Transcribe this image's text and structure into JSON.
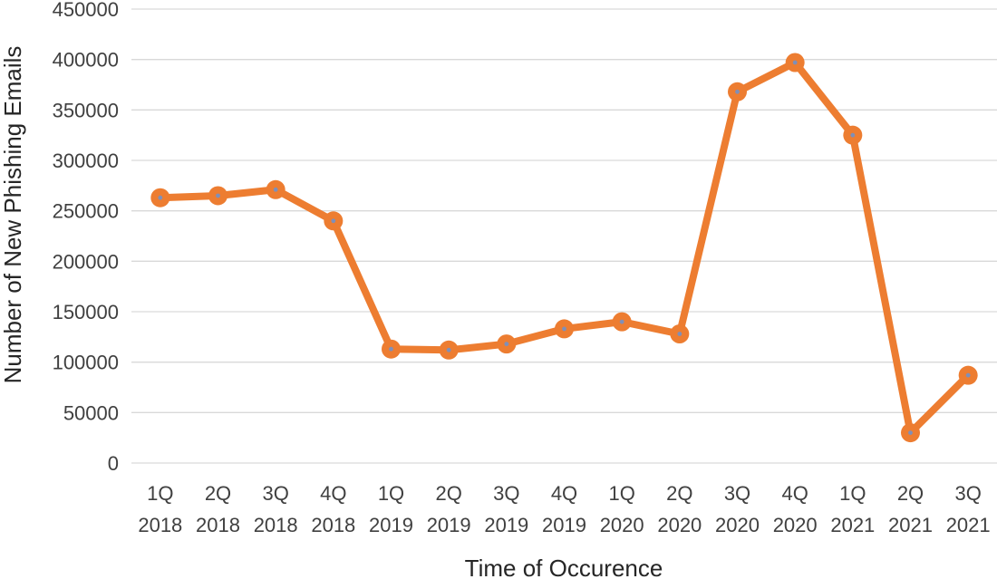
{
  "chart_data": {
    "type": "line",
    "title": "",
    "xlabel": "Time of Occurence",
    "ylabel": "Number of New Phishing Emails",
    "categories": [
      [
        "1Q",
        "2018"
      ],
      [
        "2Q",
        "2018"
      ],
      [
        "3Q",
        "2018"
      ],
      [
        "4Q",
        "2018"
      ],
      [
        "1Q",
        "2019"
      ],
      [
        "2Q",
        "2019"
      ],
      [
        "3Q",
        "2019"
      ],
      [
        "4Q",
        "2019"
      ],
      [
        "1Q",
        "2020"
      ],
      [
        "2Q",
        "2020"
      ],
      [
        "3Q",
        "2020"
      ],
      [
        "4Q",
        "2020"
      ],
      [
        "1Q",
        "2021"
      ],
      [
        "2Q",
        "2021"
      ],
      [
        "3Q",
        "2021"
      ]
    ],
    "series": [
      {
        "values": [
          263000,
          265000,
          271000,
          240000,
          113000,
          112000,
          118000,
          133000,
          140000,
          128000,
          368000,
          397000,
          325000,
          30000,
          87000
        ]
      }
    ],
    "ylim": [
      0,
      450000
    ],
    "yticks": [
      "0",
      "50000",
      "100000",
      "150000",
      "200000",
      "250000",
      "300000",
      "350000",
      "400000",
      "450000"
    ],
    "grid": true,
    "legend": "none",
    "colors": {
      "line": "#ed7d31",
      "marker_center": "#7f8fb8",
      "grid": "#d9d9d9"
    }
  }
}
